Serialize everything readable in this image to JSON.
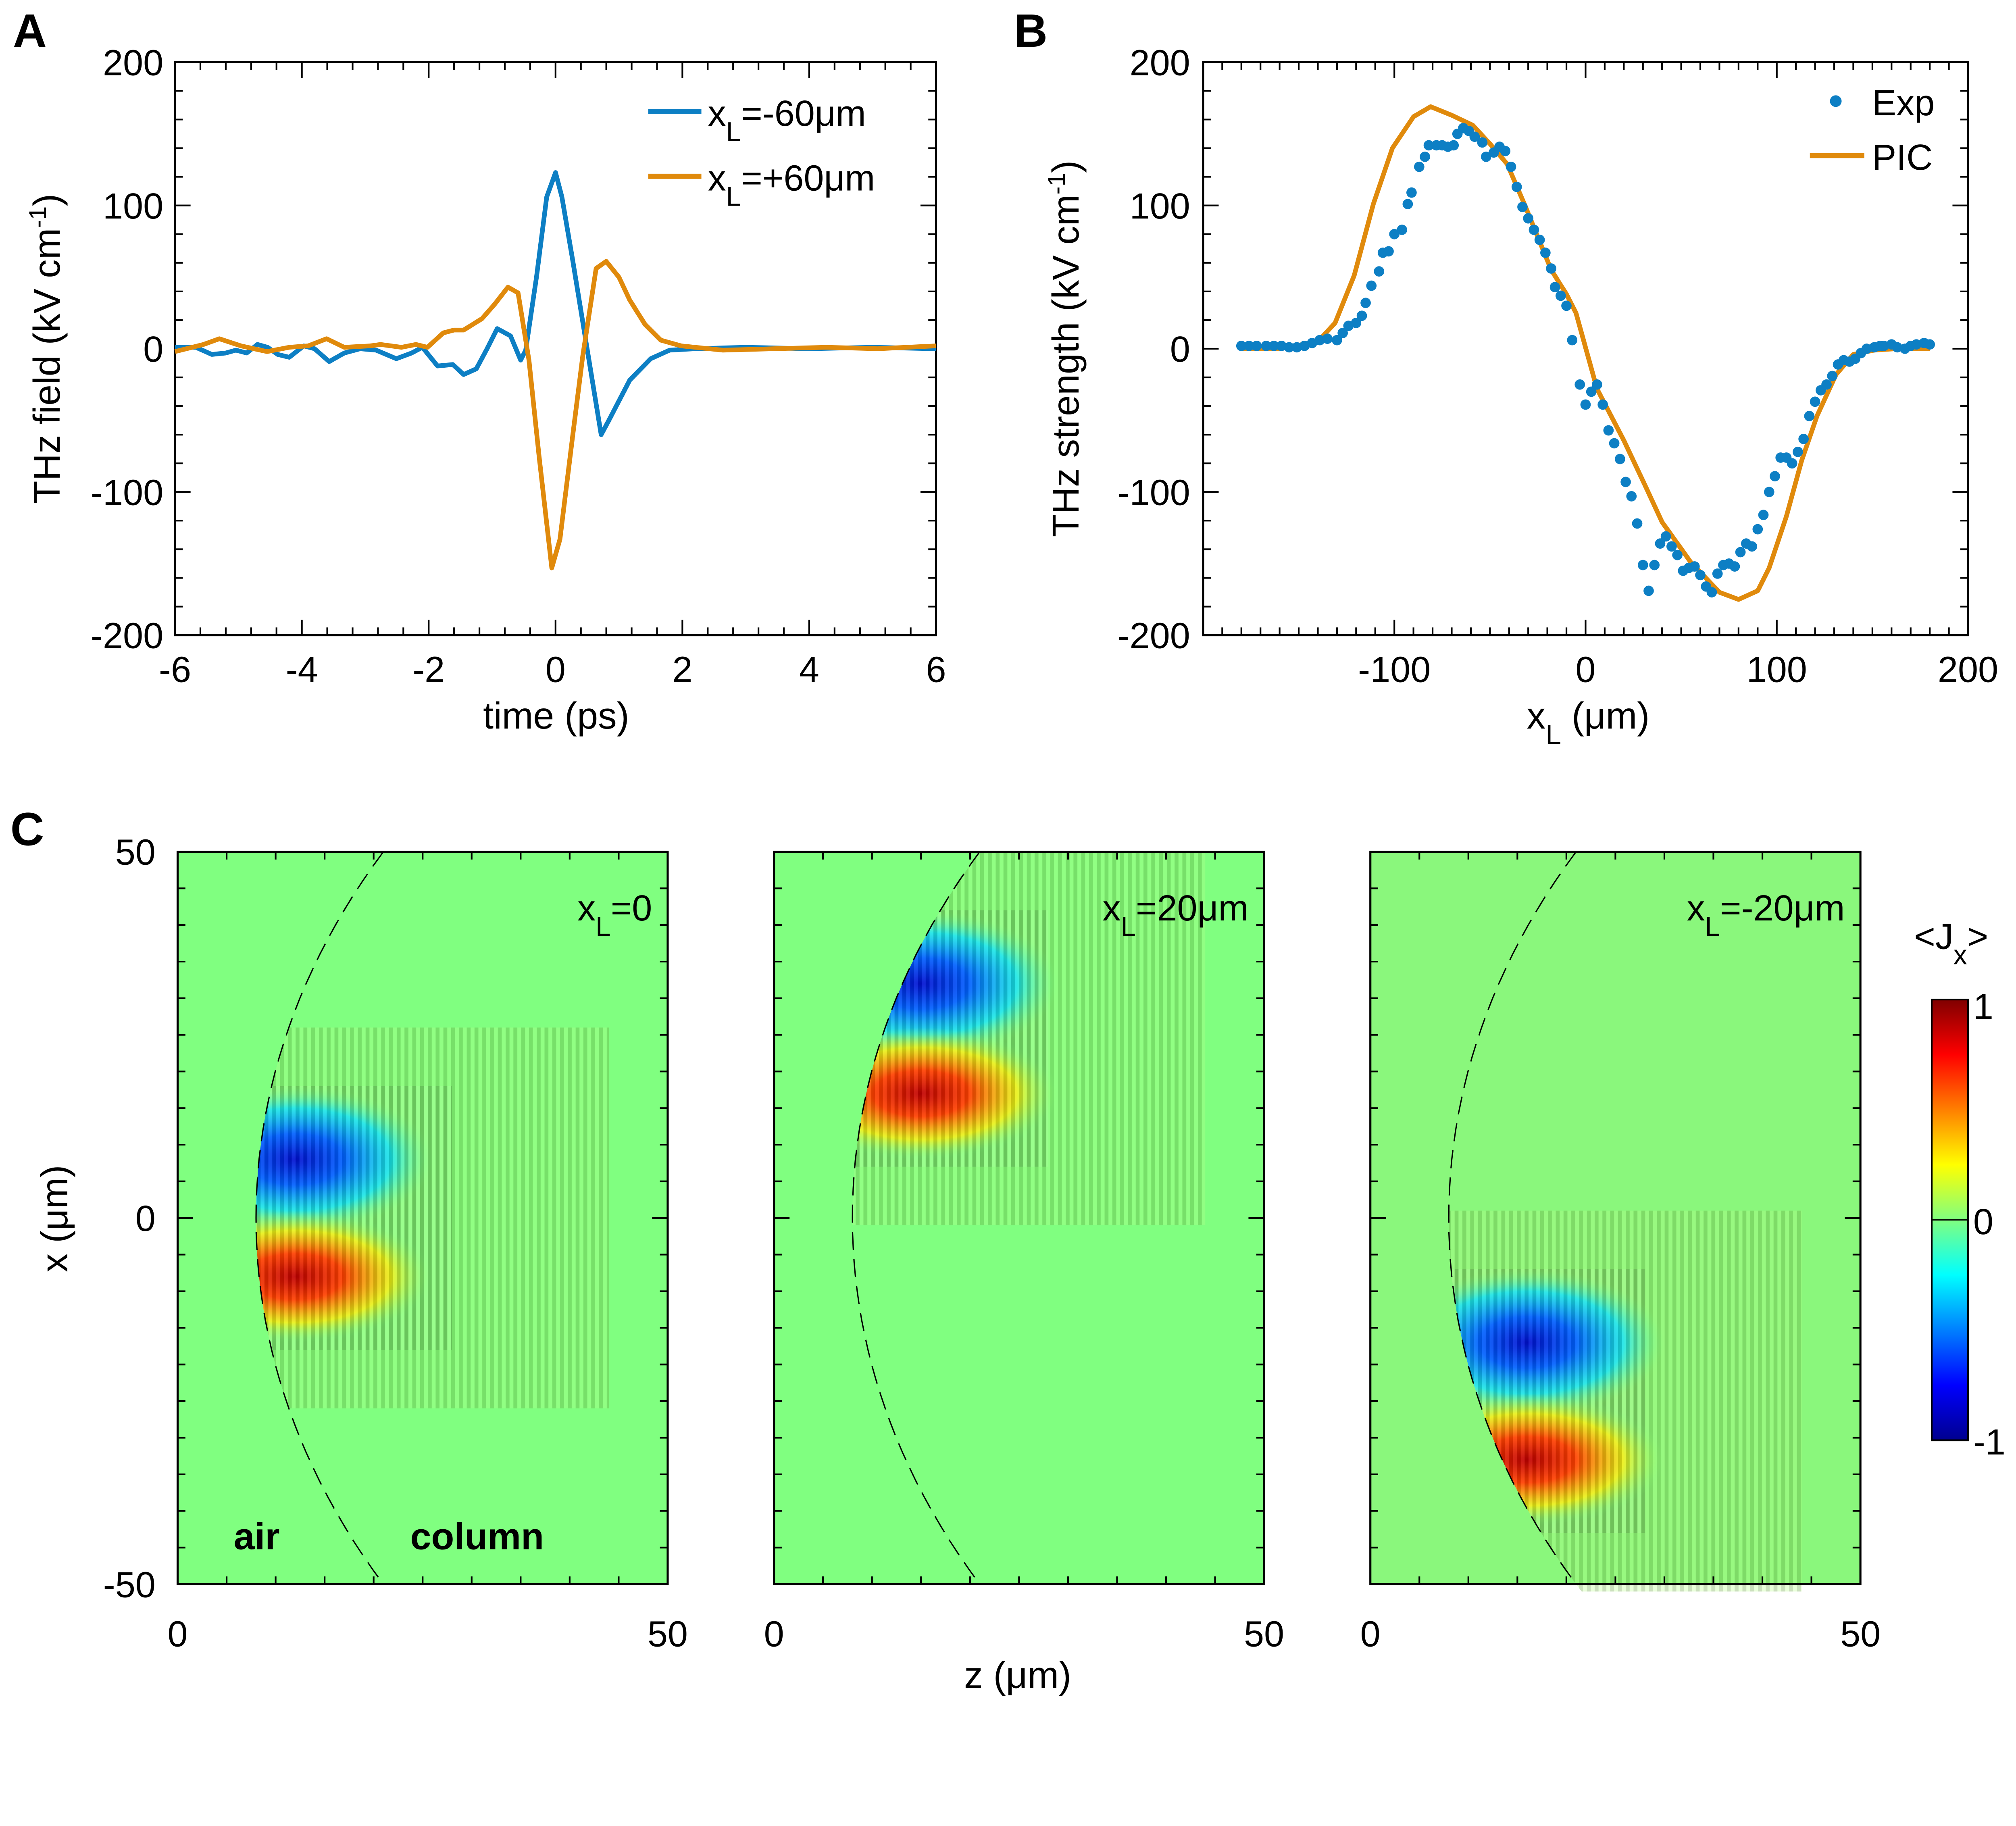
{
  "panel_letters": {
    "a": "A",
    "b": "B",
    "c": "C"
  },
  "chart_data": [
    {
      "type": "line",
      "panel": "A",
      "xlabel": "time (ps)",
      "ylabel": {
        "main": "THz field (kV cm",
        "sup": "-1",
        "end": ")"
      },
      "xlim": [
        -6,
        6
      ],
      "ylim": [
        -200,
        200
      ],
      "xticks": [
        "-6",
        "-4",
        "-2",
        "0",
        "2",
        "4",
        "6"
      ],
      "yticks": [
        "-200",
        "-100",
        "0",
        "100",
        "200"
      ],
      "legend_position": "top-right",
      "series": [
        {
          "name": {
            "main": "x",
            "sub": "L",
            "rest": "=-60μm"
          },
          "color": "#0d7fc4",
          "x": [
            -6,
            -5.67,
            -5.42,
            -5.2,
            -5.04,
            -4.87,
            -4.7,
            -4.54,
            -4.38,
            -4.2,
            -3.97,
            -3.8,
            -3.57,
            -3.33,
            -3.08,
            -2.83,
            -2.51,
            -2.27,
            -2.1,
            -1.86,
            -1.62,
            -1.45,
            -1.25,
            -1.08,
            -0.92,
            -0.71,
            -0.55,
            -0.47,
            -0.3,
            -0.14,
            0,
            0.1,
            0.27,
            0.51,
            0.72,
            0.84,
            1.17,
            1.5,
            1.8,
            2.2,
            3,
            4,
            5,
            6
          ],
          "y": [
            1,
            1,
            -4,
            -3,
            -1,
            -3,
            3,
            1,
            -4,
            -6,
            2,
            0,
            -9,
            -3,
            0,
            -1,
            -7,
            -3,
            1,
            -12,
            -11,
            -18,
            -14,
            0,
            14,
            9,
            -8,
            -1,
            50,
            106,
            123,
            106,
            62,
            -3,
            -60,
            -50,
            -22,
            -7,
            -1,
            0,
            1,
            0,
            1,
            0
          ]
        },
        {
          "name": {
            "main": "x",
            "sub": "L",
            "rest": "=+60μm"
          },
          "color": "#e08a0c",
          "x": [
            -6,
            -5.55,
            -5.3,
            -4.96,
            -4.55,
            -4.2,
            -3.9,
            -3.61,
            -3.33,
            -2.92,
            -2.76,
            -2.43,
            -2.2,
            -2.02,
            -1.77,
            -1.6,
            -1.45,
            -1.16,
            -0.96,
            -0.75,
            -0.59,
            -0.42,
            -0.26,
            -0.06,
            0.07,
            0.27,
            0.43,
            0.64,
            0.8,
            1.0,
            1.17,
            1.41,
            1.66,
            1.98,
            2.64,
            3.45,
            4.27,
            5.08,
            6
          ],
          "y": [
            -2,
            3,
            7,
            2,
            -2,
            1,
            2,
            7,
            1,
            2,
            3,
            1,
            3,
            1,
            11,
            13,
            13,
            21,
            31,
            43,
            39,
            -8,
            -75,
            -153,
            -133,
            -61,
            -5,
            56,
            61,
            50,
            34,
            17,
            6,
            2,
            -1,
            0,
            1,
            0,
            2
          ]
        }
      ]
    },
    {
      "type": "scatter+line",
      "panel": "B",
      "xlabel": {
        "main": "x",
        "sub": "L",
        "rest": " (μm)"
      },
      "ylabel": {
        "main": "THz strength (kV cm",
        "sup": "-1",
        "end": ")"
      },
      "xlim": [
        -200,
        200
      ],
      "ylim": [
        -200,
        200
      ],
      "xticks": [
        "-100",
        "0",
        "100",
        "200"
      ],
      "yticks": [
        "-200",
        "-100",
        "0",
        "100",
        "200"
      ],
      "legend_position": "top-right",
      "series": [
        {
          "name": "Exp",
          "kind": "scatter",
          "color": "#0d7fc4",
          "x": [
            -180,
            -176,
            -172,
            -167,
            -163,
            -159,
            -155,
            -151,
            -147,
            -143,
            -139,
            -135,
            -130,
            -127,
            -124,
            -120,
            -117,
            -115,
            -112,
            -108,
            -106,
            -103,
            -100,
            -96,
            -93,
            -91,
            -87,
            -84,
            -82,
            -78,
            -75,
            -72,
            -69,
            -67,
            -64,
            -61,
            -58,
            -54,
            -52,
            -48,
            -45,
            -42,
            -39,
            -36,
            -33,
            -30,
            -27,
            -24,
            -21,
            -18,
            -16,
            -13,
            -10,
            -7,
            -3,
            0,
            3,
            6,
            9,
            12,
            15,
            18,
            21,
            24,
            27,
            30,
            33,
            36,
            39,
            42,
            45,
            48,
            51,
            54,
            57,
            60,
            63,
            66,
            69,
            72,
            75,
            78,
            81,
            84,
            87,
            90,
            93,
            96,
            99,
            102,
            105,
            108,
            111,
            114,
            117,
            120,
            123,
            126,
            129,
            132,
            135,
            138,
            141,
            144,
            147,
            151,
            154,
            156,
            160,
            163,
            167,
            170,
            173,
            177,
            180
          ],
          "y": [
            2,
            2,
            2,
            2,
            2,
            2,
            1,
            1,
            2,
            4,
            6,
            7,
            6,
            11,
            16,
            18,
            23,
            32,
            44,
            54,
            67,
            68,
            80,
            83,
            101,
            109,
            127,
            134,
            142,
            142,
            142,
            141,
            142,
            150,
            154,
            152,
            148,
            144,
            134,
            137,
            141,
            138,
            127,
            113,
            99,
            91,
            83,
            76,
            67,
            56,
            43,
            37,
            30,
            6,
            -25,
            -39,
            -30,
            -25,
            -39,
            -57,
            -66,
            -77,
            -93,
            -103,
            -122,
            -151,
            -169,
            -151,
            -136,
            -131,
            -138,
            -144,
            -155,
            -153,
            -152,
            -158,
            -166,
            -170,
            -157,
            -151,
            -150,
            -152,
            -142,
            -136,
            -138,
            -126,
            -116,
            -100,
            -89,
            -76,
            -76,
            -80,
            -72,
            -63,
            -47,
            -37,
            -29,
            -25,
            -19,
            -11,
            -8,
            -9,
            -7,
            -3,
            0,
            1,
            2,
            2,
            3,
            1,
            0,
            2,
            3,
            4,
            3
          ]
        },
        {
          "name": "PIC",
          "kind": "line",
          "color": "#e08a0c",
          "x": [
            -180,
            -160,
            -140,
            -131,
            -121,
            -111,
            -101,
            -90,
            -81,
            -70,
            -59,
            -50,
            -41,
            -32,
            -18,
            -10,
            -5,
            6,
            20,
            31,
            40,
            55,
            70,
            80,
            90,
            96,
            105,
            113,
            121,
            131,
            140,
            151,
            162,
            180
          ],
          "y": [
            0,
            0,
            5,
            18,
            51,
            101,
            140,
            162,
            169,
            163,
            156,
            143,
            129,
            101,
            55,
            38,
            25,
            -28,
            -64,
            -95,
            -121,
            -149,
            -170,
            -175,
            -169,
            -153,
            -117,
            -78,
            -47,
            -18,
            -4,
            -1,
            0,
            0
          ]
        }
      ]
    },
    {
      "type": "heatmap",
      "panel": "C",
      "xlabel": "z (μm)",
      "ylabel": "x (μm)",
      "xlim": [
        0,
        50
      ],
      "ylim": [
        -50,
        50
      ],
      "xticks": [
        "0",
        "50"
      ],
      "yticks": [
        "50",
        "0",
        "-50"
      ],
      "colorbar": {
        "title": {
          "main": "<J",
          "sub": "x",
          "end": ">"
        },
        "ticks": [
          "1",
          "0",
          "-1"
        ],
        "range": [
          -1,
          1
        ],
        "colormap": "jet"
      },
      "annotations": {
        "air": "air",
        "column": "column"
      },
      "panels": [
        {
          "label": {
            "main": "x",
            "sub": "L",
            "rest": "=0"
          },
          "negative_lobe_x": 8,
          "positive_lobe_x": -8,
          "lobe_z": 14
        },
        {
          "label": {
            "main": "x",
            "sub": "L",
            "rest": "=20μm"
          },
          "negative_lobe_x": 32,
          "positive_lobe_x": 17,
          "lobe_z": 17
        },
        {
          "label": {
            "main": "x",
            "sub": "L",
            "rest": "=-20μm"
          },
          "negative_lobe_x": -17,
          "positive_lobe_x": -33,
          "lobe_z": 18
        }
      ]
    }
  ]
}
